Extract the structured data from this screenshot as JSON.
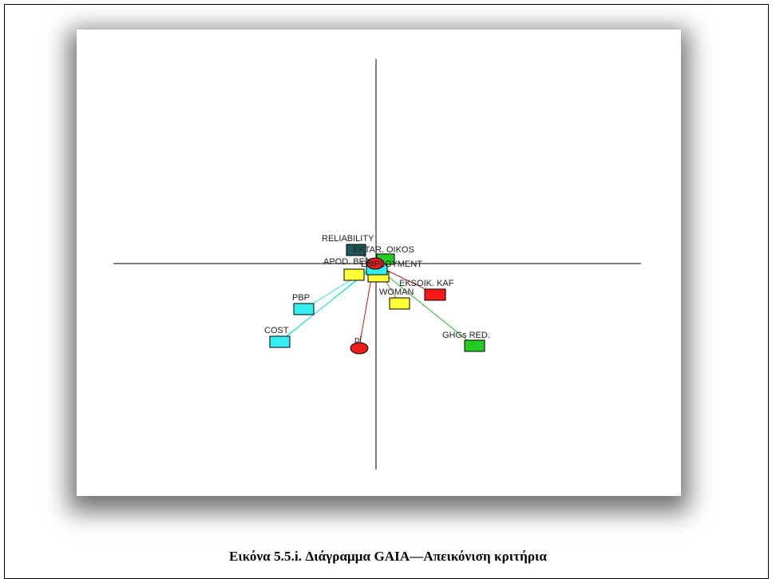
{
  "caption": "Εικόνα 5.5.i. Διάγραμμα GAIA—Απεικόνιση κριτήρια",
  "criteria": [
    {
      "id": "reliability",
      "label": "RELIABILITY",
      "color": "#1f5a5a"
    },
    {
      "id": "ektar-oikos",
      "label": "EKTAR. OIKOS",
      "color": "#22cc22"
    },
    {
      "id": "apod-ben",
      "label": "APOD. BEN",
      "color": "#ffff33"
    },
    {
      "id": "employment",
      "label": "EMPLOYMENT",
      "color": "#ffff33"
    },
    {
      "id": "center-cyan",
      "label": "",
      "color": "#33eeee"
    },
    {
      "id": "eksoik-kaf",
      "label": "EKSOIK. KAF",
      "color": "#ff1a1a"
    },
    {
      "id": "woman",
      "label": "WOMAN",
      "color": "#ffff33"
    },
    {
      "id": "pbp",
      "label": "PBP",
      "color": "#33eeee"
    },
    {
      "id": "cost",
      "label": "COST",
      "color": "#33eeee"
    },
    {
      "id": "ghgs-red",
      "label": "GHGs RED.",
      "color": "#22cc22"
    }
  ],
  "decision_axis": {
    "label": "pi",
    "color": "#ee1c1c"
  },
  "center_marker": {
    "color": "#ee1c1c"
  }
}
